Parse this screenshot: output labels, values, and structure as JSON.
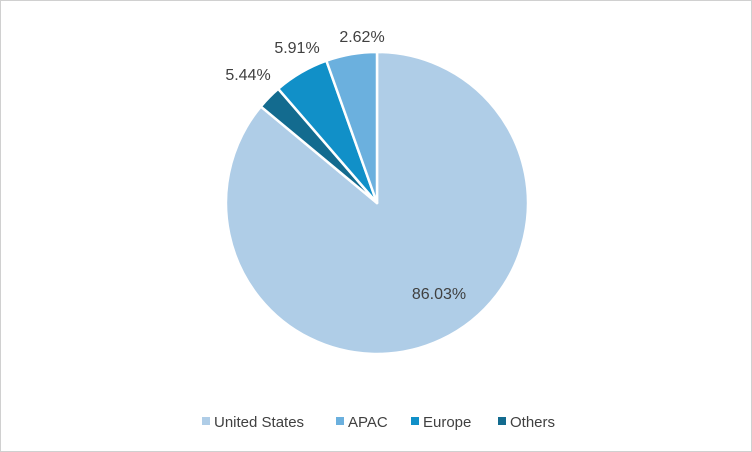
{
  "chart_data": {
    "type": "pie",
    "title": "",
    "categories": [
      "United States",
      "APAC",
      "Europe",
      "Others"
    ],
    "values": [
      86.03,
      5.44,
      5.91,
      2.62
    ],
    "labels": [
      "86.03%",
      "5.44%",
      "5.91%",
      "2.62%"
    ],
    "colors": [
      "#afcde7",
      "#6bb0de",
      "#1190c8",
      "#136b8f"
    ],
    "legend": {
      "position": "bottom",
      "entries": [
        "United States",
        "APAC",
        "Europe",
        "Others"
      ]
    }
  }
}
